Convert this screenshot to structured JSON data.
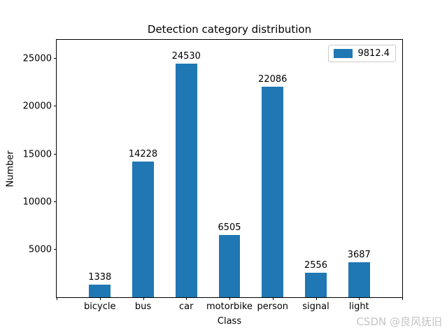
{
  "figure": {
    "watermark": "CSDN @良风抚旧"
  },
  "chart_data": {
    "type": "bar",
    "title": "Detection category distribution",
    "categories": [
      "bicycle",
      "bus",
      "car",
      "motorbike",
      "person",
      "signal",
      "light"
    ],
    "values": [
      1338,
      14228,
      24530,
      6505,
      22086,
      2556,
      3687
    ],
    "xlabel": "Class",
    "ylabel": "Number",
    "ylim": [
      0,
      27000
    ],
    "yticks": [
      5000,
      10000,
      15000,
      20000,
      25000
    ],
    "bar_color": "#1f77b4",
    "bar_width_frac": 0.0625,
    "legend": {
      "label": "9812.4",
      "position": "upper right"
    },
    "grid": false,
    "value_labels": true
  }
}
